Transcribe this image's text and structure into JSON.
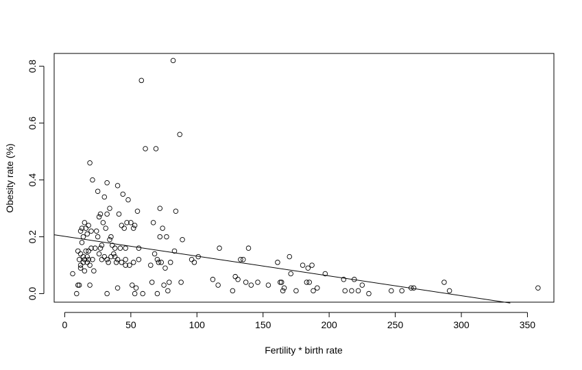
{
  "chart_data": {
    "type": "scatter",
    "title": "",
    "xlabel": "Fertility * birth rate",
    "ylabel": "Obesity rate (%)",
    "xlim": [
      -8,
      370
    ],
    "ylim": [
      -0.03,
      0.845
    ],
    "xticks": [
      0,
      50,
      100,
      150,
      200,
      250,
      300,
      350
    ],
    "yticks": [
      0.0,
      0.2,
      0.4,
      0.6,
      0.8
    ],
    "ytick_labels": [
      "0.0",
      "0.2",
      "0.4",
      "0.6",
      "0.8"
    ],
    "grid": false,
    "legend": false,
    "marker_color": "#000000",
    "regression_line": {
      "x": [
        -8,
        337
      ],
      "y": [
        0.207,
        -0.033
      ]
    },
    "points": [
      [
        6,
        0.07
      ],
      [
        9,
        0.0
      ],
      [
        10,
        0.03
      ],
      [
        10,
        0.15
      ],
      [
        11,
        0.03
      ],
      [
        11,
        0.12
      ],
      [
        12,
        0.09
      ],
      [
        12,
        0.22
      ],
      [
        12,
        0.1
      ],
      [
        12,
        0.14
      ],
      [
        13,
        0.18
      ],
      [
        13,
        0.23
      ],
      [
        14,
        0.13
      ],
      [
        14,
        0.11
      ],
      [
        14,
        0.2
      ],
      [
        15,
        0.25
      ],
      [
        15,
        0.08
      ],
      [
        15,
        0.12
      ],
      [
        16,
        0.15
      ],
      [
        16,
        0.23
      ],
      [
        17,
        0.13
      ],
      [
        17,
        0.11
      ],
      [
        17,
        0.21
      ],
      [
        18,
        0.24
      ],
      [
        18,
        0.15
      ],
      [
        18,
        0.12
      ],
      [
        19,
        0.1
      ],
      [
        19,
        0.46
      ],
      [
        19,
        0.03
      ],
      [
        20,
        0.16
      ],
      [
        20,
        0.22
      ],
      [
        21,
        0.12
      ],
      [
        21,
        0.4
      ],
      [
        22,
        0.08
      ],
      [
        23,
        0.16
      ],
      [
        24,
        0.22
      ],
      [
        25,
        0.2
      ],
      [
        25,
        0.36
      ],
      [
        26,
        0.27
      ],
      [
        26,
        0.14
      ],
      [
        27,
        0.16
      ],
      [
        27,
        0.28
      ],
      [
        28,
        0.12
      ],
      [
        28,
        0.17
      ],
      [
        29,
        0.25
      ],
      [
        30,
        0.34
      ],
      [
        30,
        0.13
      ],
      [
        31,
        0.23
      ],
      [
        32,
        0.28
      ],
      [
        32,
        0.39
      ],
      [
        32,
        0.12
      ],
      [
        32,
        0.0
      ],
      [
        33,
        0.11
      ],
      [
        34,
        0.19
      ],
      [
        34,
        0.3
      ],
      [
        35,
        0.2
      ],
      [
        35,
        0.13
      ],
      [
        36,
        0.17
      ],
      [
        37,
        0.14
      ],
      [
        38,
        0.13
      ],
      [
        38,
        0.16
      ],
      [
        39,
        0.11
      ],
      [
        40,
        0.12
      ],
      [
        40,
        0.02
      ],
      [
        40,
        0.38
      ],
      [
        41,
        0.28
      ],
      [
        42,
        0.16
      ],
      [
        43,
        0.11
      ],
      [
        43,
        0.24
      ],
      [
        44,
        0.35
      ],
      [
        45,
        0.23
      ],
      [
        46,
        0.16
      ],
      [
        46,
        0.12
      ],
      [
        46,
        0.1
      ],
      [
        47,
        0.25
      ],
      [
        48,
        0.33
      ],
      [
        49,
        0.1
      ],
      [
        50,
        0.25
      ],
      [
        51,
        0.03
      ],
      [
        52,
        0.11
      ],
      [
        52,
        0.23
      ],
      [
        53,
        0.0
      ],
      [
        53,
        0.24
      ],
      [
        54,
        0.02
      ],
      [
        55,
        0.29
      ],
      [
        56,
        0.12
      ],
      [
        56,
        0.16
      ],
      [
        58,
        0.75
      ],
      [
        59,
        0.0
      ],
      [
        61,
        0.51
      ],
      [
        65,
        0.1
      ],
      [
        66,
        0.04
      ],
      [
        67,
        0.25
      ],
      [
        68,
        0.14
      ],
      [
        69,
        0.51
      ],
      [
        70,
        0.0
      ],
      [
        70,
        0.12
      ],
      [
        71,
        0.11
      ],
      [
        72,
        0.3
      ],
      [
        72,
        0.2
      ],
      [
        73,
        0.11
      ],
      [
        74,
        0.23
      ],
      [
        75,
        0.03
      ],
      [
        76,
        0.09
      ],
      [
        77,
        0.2
      ],
      [
        78,
        0.01
      ],
      [
        79,
        0.04
      ],
      [
        80,
        0.11
      ],
      [
        82,
        0.82
      ],
      [
        83,
        0.15
      ],
      [
        84,
        0.29
      ],
      [
        87,
        0.56
      ],
      [
        88,
        0.04
      ],
      [
        89,
        0.19
      ],
      [
        96,
        0.12
      ],
      [
        98,
        0.11
      ],
      [
        101,
        0.13
      ],
      [
        112,
        0.05
      ],
      [
        116,
        0.03
      ],
      [
        117,
        0.16
      ],
      [
        127,
        0.01
      ],
      [
        129,
        0.06
      ],
      [
        131,
        0.05
      ],
      [
        133,
        0.12
      ],
      [
        135,
        0.12
      ],
      [
        137,
        0.04
      ],
      [
        139,
        0.16
      ],
      [
        141,
        0.03
      ],
      [
        146,
        0.04
      ],
      [
        154,
        0.03
      ],
      [
        161,
        0.11
      ],
      [
        163,
        0.04
      ],
      [
        164,
        0.04
      ],
      [
        165,
        0.01
      ],
      [
        166,
        0.02
      ],
      [
        170,
        0.13
      ],
      [
        171,
        0.07
      ],
      [
        175,
        0.01
      ],
      [
        180,
        0.1
      ],
      [
        183,
        0.04
      ],
      [
        184,
        0.09
      ],
      [
        185,
        0.04
      ],
      [
        187,
        0.1
      ],
      [
        188,
        0.01
      ],
      [
        191,
        0.02
      ],
      [
        197,
        0.07
      ],
      [
        211,
        0.05
      ],
      [
        212,
        0.01
      ],
      [
        217,
        0.01
      ],
      [
        219,
        0.05
      ],
      [
        222,
        0.01
      ],
      [
        225,
        0.03
      ],
      [
        230,
        0.0
      ],
      [
        247,
        0.01
      ],
      [
        255,
        0.01
      ],
      [
        262,
        0.02
      ],
      [
        264,
        0.02
      ],
      [
        287,
        0.04
      ],
      [
        291,
        0.01
      ],
      [
        358,
        0.02
      ]
    ]
  }
}
